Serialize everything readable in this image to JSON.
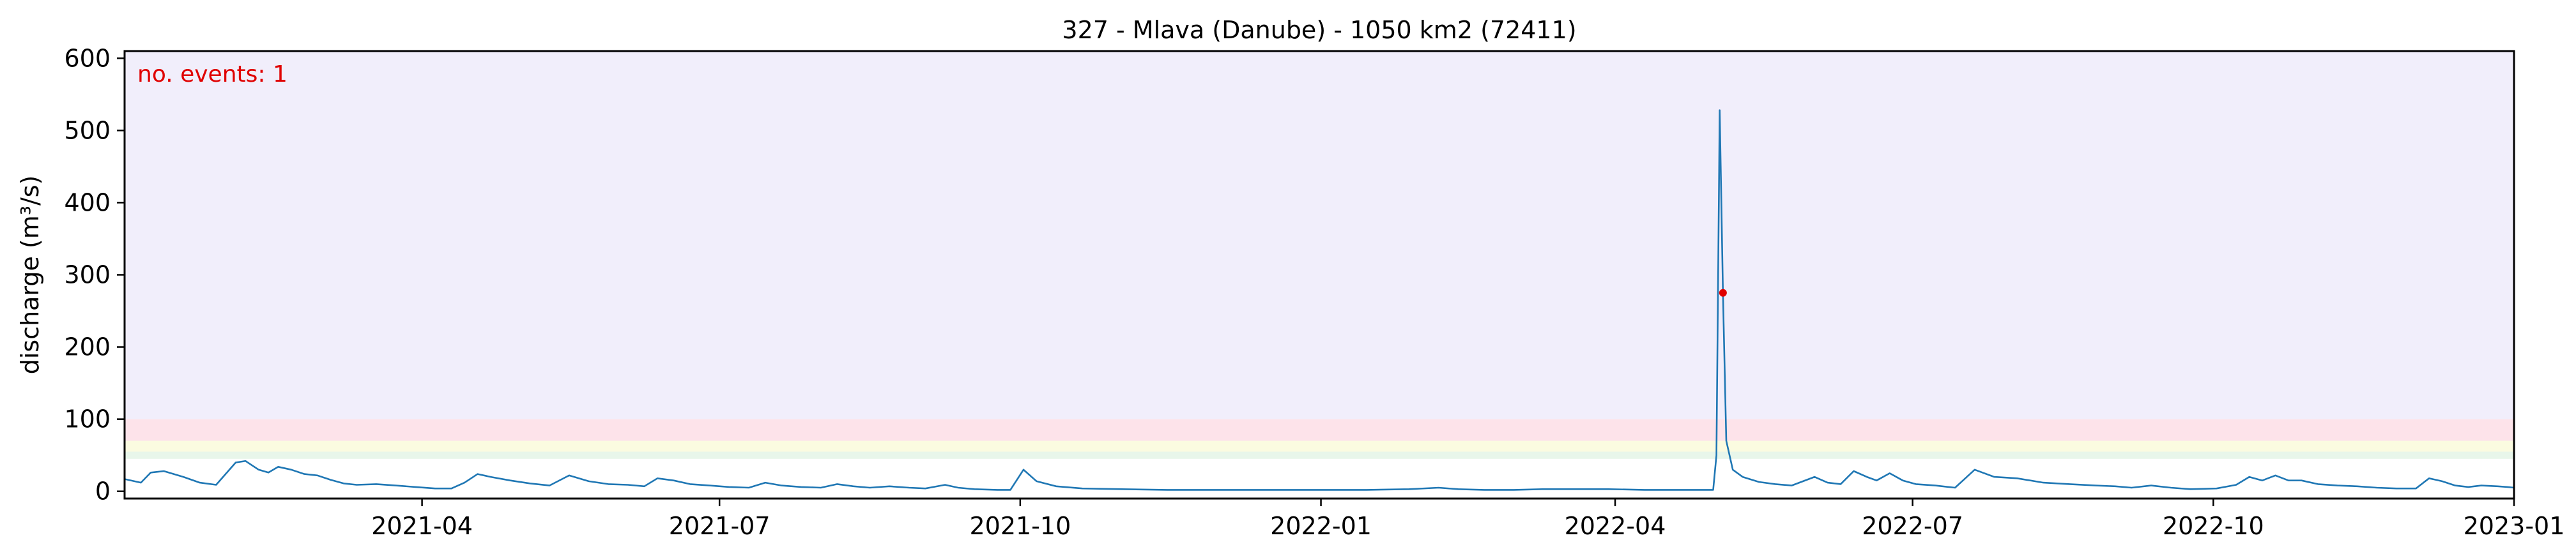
{
  "chart_data": {
    "type": "line",
    "title": "327 - Mlava (Danube) - 1050 km2 (72411)",
    "ylabel": "discharge (m³/s)",
    "xlabel": "",
    "ylim": [
      -10,
      610
    ],
    "xlim": [
      "2020-12-31",
      "2023-01-01"
    ],
    "yticks": [
      0,
      100,
      200,
      300,
      400,
      500,
      600
    ],
    "xticks": [
      "2021-04",
      "2021-07",
      "2021-10",
      "2022-01",
      "2022-04",
      "2022-07",
      "2022-10",
      "2023-01"
    ],
    "annotation": {
      "text": "no. events: 1",
      "color": "#e00000"
    },
    "threshold_bands": [
      {
        "from": 45,
        "to": 55,
        "color": "#e8f6ea"
      },
      {
        "from": 55,
        "to": 70,
        "color": "#fbfbe0"
      },
      {
        "from": 70,
        "to": 100,
        "color": "#fde3ea"
      },
      {
        "from": 100,
        "to": 610,
        "color": "#f1eefb"
      }
    ],
    "series": [
      {
        "color": "#1f77b4",
        "points": [
          [
            "2020-12-31",
            17
          ],
          [
            "2021-01-05",
            12
          ],
          [
            "2021-01-08",
            26
          ],
          [
            "2021-01-12",
            28
          ],
          [
            "2021-01-18",
            20
          ],
          [
            "2021-01-23",
            12
          ],
          [
            "2021-01-28",
            9
          ],
          [
            "2021-02-03",
            40
          ],
          [
            "2021-02-06",
            42
          ],
          [
            "2021-02-10",
            30
          ],
          [
            "2021-02-13",
            26
          ],
          [
            "2021-02-16",
            34
          ],
          [
            "2021-02-20",
            30
          ],
          [
            "2021-02-24",
            24
          ],
          [
            "2021-02-28",
            22
          ],
          [
            "2021-03-04",
            16
          ],
          [
            "2021-03-08",
            11
          ],
          [
            "2021-03-12",
            9
          ],
          [
            "2021-03-18",
            10
          ],
          [
            "2021-03-24",
            8
          ],
          [
            "2021-03-30",
            6
          ],
          [
            "2021-04-05",
            4
          ],
          [
            "2021-04-10",
            4
          ],
          [
            "2021-04-14",
            12
          ],
          [
            "2021-04-18",
            24
          ],
          [
            "2021-04-22",
            20
          ],
          [
            "2021-04-28",
            15
          ],
          [
            "2021-05-04",
            11
          ],
          [
            "2021-05-10",
            8
          ],
          [
            "2021-05-16",
            22
          ],
          [
            "2021-05-22",
            14
          ],
          [
            "2021-05-28",
            10
          ],
          [
            "2021-06-03",
            9
          ],
          [
            "2021-06-08",
            7
          ],
          [
            "2021-06-12",
            18
          ],
          [
            "2021-06-17",
            15
          ],
          [
            "2021-06-22",
            10
          ],
          [
            "2021-06-28",
            8
          ],
          [
            "2021-07-04",
            6
          ],
          [
            "2021-07-10",
            5
          ],
          [
            "2021-07-15",
            12
          ],
          [
            "2021-07-20",
            8
          ],
          [
            "2021-07-26",
            6
          ],
          [
            "2021-08-01",
            5
          ],
          [
            "2021-08-06",
            10
          ],
          [
            "2021-08-11",
            7
          ],
          [
            "2021-08-16",
            5
          ],
          [
            "2021-08-22",
            7
          ],
          [
            "2021-08-28",
            5
          ],
          [
            "2021-09-02",
            4
          ],
          [
            "2021-09-08",
            9
          ],
          [
            "2021-09-12",
            5
          ],
          [
            "2021-09-17",
            3
          ],
          [
            "2021-09-24",
            2
          ],
          [
            "2021-09-28",
            2
          ],
          [
            "2021-10-02",
            30
          ],
          [
            "2021-10-06",
            14
          ],
          [
            "2021-10-12",
            7
          ],
          [
            "2021-10-20",
            4
          ],
          [
            "2021-11-01",
            3
          ],
          [
            "2021-11-15",
            2
          ],
          [
            "2021-12-01",
            2
          ],
          [
            "2021-12-15",
            2
          ],
          [
            "2022-01-01",
            2
          ],
          [
            "2022-01-15",
            2
          ],
          [
            "2022-01-28",
            3
          ],
          [
            "2022-02-06",
            5
          ],
          [
            "2022-02-12",
            3
          ],
          [
            "2022-02-20",
            2
          ],
          [
            "2022-03-01",
            2
          ],
          [
            "2022-03-10",
            3
          ],
          [
            "2022-03-20",
            3
          ],
          [
            "2022-03-30",
            3
          ],
          [
            "2022-04-10",
            2
          ],
          [
            "2022-04-20",
            2
          ],
          [
            "2022-05-01",
            2
          ],
          [
            "2022-05-02",
            50
          ],
          [
            "2022-05-03",
            528
          ],
          [
            "2022-05-04",
            270
          ],
          [
            "2022-05-05",
            70
          ],
          [
            "2022-05-07",
            30
          ],
          [
            "2022-05-10",
            20
          ],
          [
            "2022-05-15",
            13
          ],
          [
            "2022-05-20",
            10
          ],
          [
            "2022-05-25",
            8
          ],
          [
            "2022-06-01",
            20
          ],
          [
            "2022-06-05",
            12
          ],
          [
            "2022-06-09",
            10
          ],
          [
            "2022-06-13",
            28
          ],
          [
            "2022-06-17",
            20
          ],
          [
            "2022-06-20",
            15
          ],
          [
            "2022-06-24",
            25
          ],
          [
            "2022-06-28",
            15
          ],
          [
            "2022-07-02",
            10
          ],
          [
            "2022-07-08",
            8
          ],
          [
            "2022-07-14",
            5
          ],
          [
            "2022-07-20",
            30
          ],
          [
            "2022-07-26",
            20
          ],
          [
            "2022-08-02",
            18
          ],
          [
            "2022-08-10",
            12
          ],
          [
            "2022-08-18",
            10
          ],
          [
            "2022-08-26",
            8
          ],
          [
            "2022-09-01",
            7
          ],
          [
            "2022-09-06",
            5
          ],
          [
            "2022-09-12",
            8
          ],
          [
            "2022-09-18",
            5
          ],
          [
            "2022-09-24",
            3
          ],
          [
            "2022-10-02",
            4
          ],
          [
            "2022-10-08",
            9
          ],
          [
            "2022-10-12",
            20
          ],
          [
            "2022-10-16",
            15
          ],
          [
            "2022-10-20",
            22
          ],
          [
            "2022-10-24",
            15
          ],
          [
            "2022-10-28",
            15
          ],
          [
            "2022-11-02",
            10
          ],
          [
            "2022-11-08",
            8
          ],
          [
            "2022-11-14",
            7
          ],
          [
            "2022-11-20",
            5
          ],
          [
            "2022-11-26",
            4
          ],
          [
            "2022-12-02",
            4
          ],
          [
            "2022-12-06",
            18
          ],
          [
            "2022-12-10",
            14
          ],
          [
            "2022-12-14",
            8
          ],
          [
            "2022-12-18",
            6
          ],
          [
            "2022-12-22",
            8
          ],
          [
            "2022-12-27",
            7
          ],
          [
            "2022-12-30",
            6
          ],
          [
            "2023-01-01",
            5
          ]
        ]
      }
    ],
    "events": [
      {
        "date": "2022-05-04",
        "value": 275,
        "color": "#e00000"
      }
    ]
  }
}
